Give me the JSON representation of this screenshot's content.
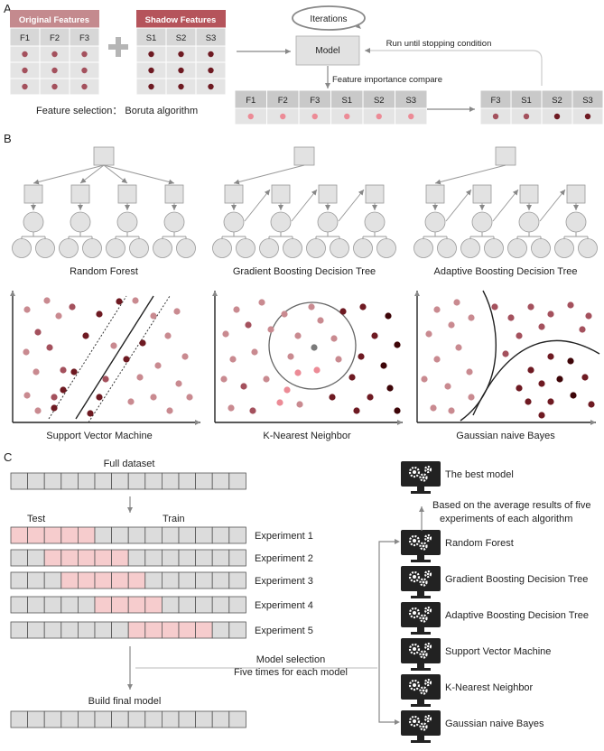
{
  "panels": {
    "a": "A",
    "b": "B",
    "c": "C"
  },
  "section_a": {
    "original_header": "Original Features",
    "shadow_header": "Shadow Features",
    "original_cols": [
      "F1",
      "F2",
      "F3"
    ],
    "shadow_cols": [
      "S1",
      "S2",
      "S3"
    ],
    "caption": "Feature selection： Boruta algorithm",
    "iterations_label": "Iterations",
    "model_label": "Model",
    "stopping_label": "Run until stopping condition",
    "compare_label": "Feature importance compare",
    "compare_cols": [
      "F1",
      "F2",
      "F3",
      "S1",
      "S2",
      "S3"
    ],
    "result_cols": [
      "F3",
      "S1",
      "S2",
      "S3"
    ]
  },
  "section_b": {
    "trees": [
      "Random Forest",
      "Gradient Boosting Decision Tree",
      "Adaptive Boosting Decision Tree"
    ],
    "scatters": [
      "Support Vector Machine",
      "K-Nearest Neighbor",
      "Gaussian naive Bayes"
    ]
  },
  "section_c": {
    "full_dataset": "Full dataset",
    "test_label": "Test",
    "train_label": "Train",
    "experiments": [
      "Experiment 1",
      "Experiment 2",
      "Experiment 3",
      "Experiment 4",
      "Experiment 5"
    ],
    "model_selection_1": "Model selection",
    "model_selection_2": "Five times for each model",
    "build_final": "Build final model",
    "best_model": "The best model",
    "average_1": "Based on the average results of five",
    "average_2": "experiments of each algorithm",
    "models": [
      "Random Forest",
      "Gradient Boosting Decision Tree",
      "Adaptive Boosting Decision Tree",
      "Support Vector Machine",
      "K-Nearest Neighbor",
      "Gaussian naive Bayes"
    ]
  },
  "colors": {
    "header_original": "#c48a8e",
    "header_shadow": "#b5545b",
    "cell_gray": "#dcdcdc",
    "cell_pink": "#f6cccd",
    "dot_light": "#c98a90",
    "dot_mid": "#a4515d",
    "dot_dark": "#6e1a22",
    "dot_darkest": "#3e0508",
    "dot_pink": "#ec8b96",
    "dot_gray": "#7a7a7a"
  }
}
